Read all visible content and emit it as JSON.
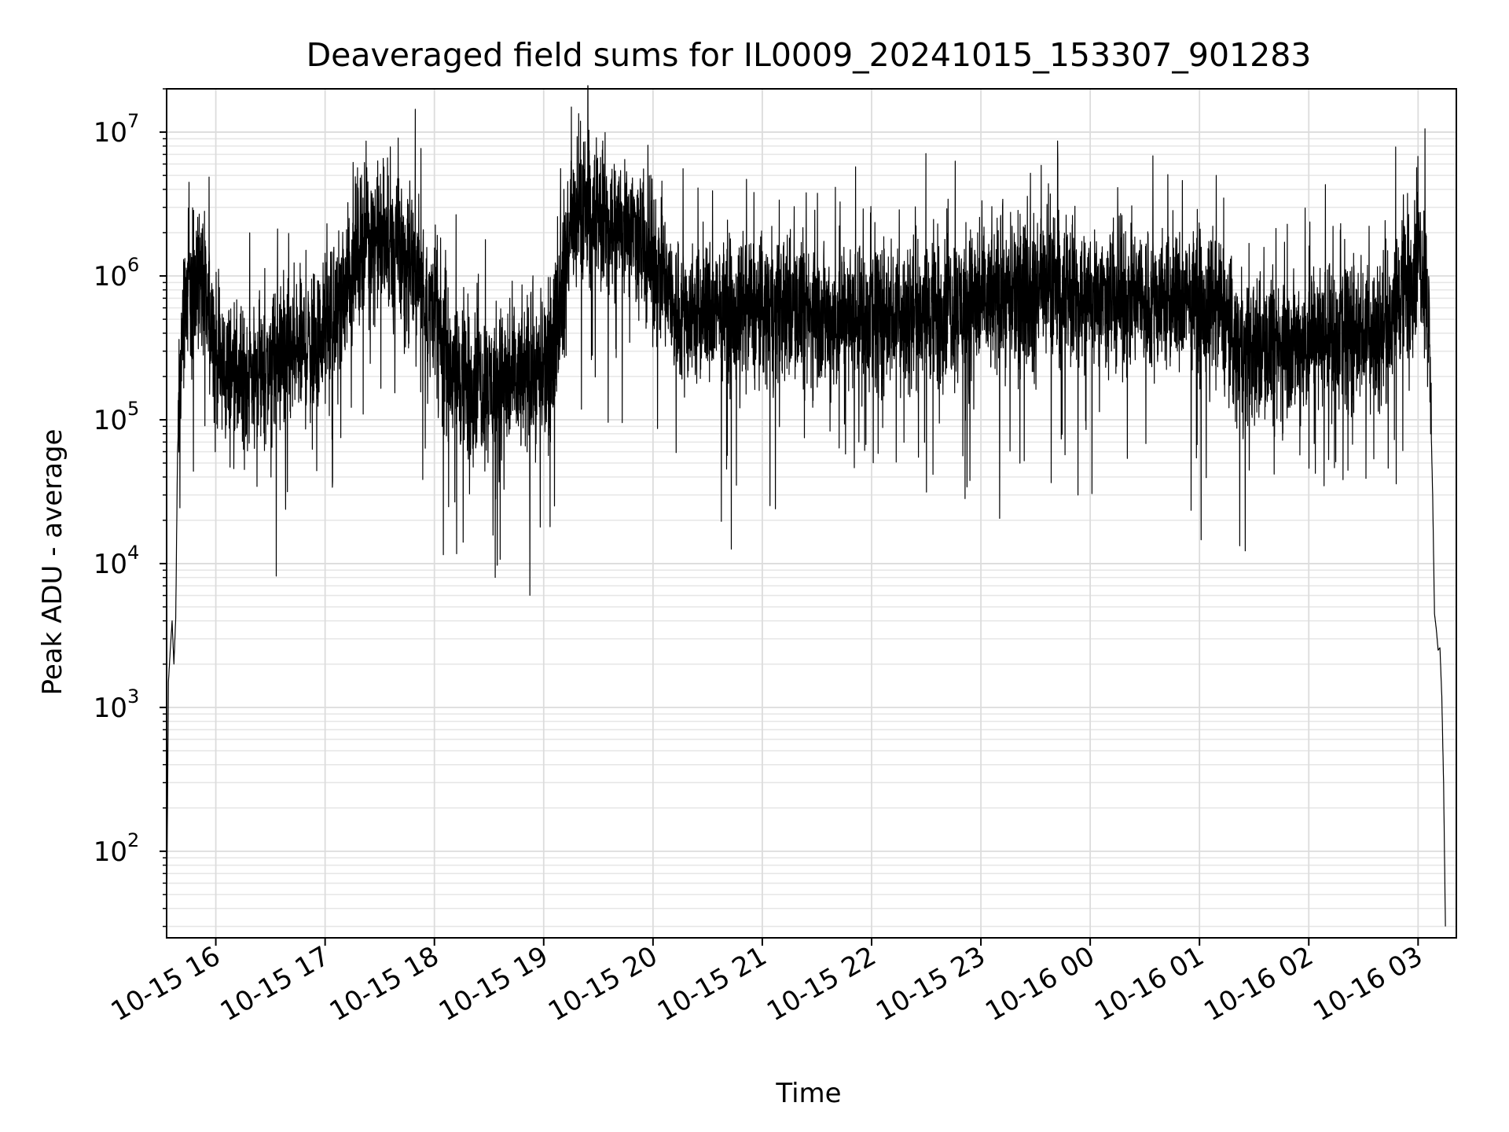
{
  "chart_data": {
    "type": "line",
    "title": "Deaveraged field sums for IL0009_20241015_153307_901283",
    "xlabel": "Time",
    "ylabel": "Peak ADU - average",
    "yscale": "log",
    "ylim": [
      25,
      20000000
    ],
    "xlim": [
      "2024-10-15T15:33:00",
      "2024-10-16T03:21:00"
    ],
    "grid": true,
    "line_color": "#000000",
    "x_ticks": [
      {
        "t": "2024-10-15T16:00",
        "label": "10-15 16"
      },
      {
        "t": "2024-10-15T17:00",
        "label": "10-15 17"
      },
      {
        "t": "2024-10-15T18:00",
        "label": "10-15 18"
      },
      {
        "t": "2024-10-15T19:00",
        "label": "10-15 19"
      },
      {
        "t": "2024-10-15T20:00",
        "label": "10-15 20"
      },
      {
        "t": "2024-10-15T21:00",
        "label": "10-15 21"
      },
      {
        "t": "2024-10-15T22:00",
        "label": "10-15 22"
      },
      {
        "t": "2024-10-15T23:00",
        "label": "10-15 23"
      },
      {
        "t": "2024-10-16T00:00",
        "label": "10-16 00"
      },
      {
        "t": "2024-10-16T01:00",
        "label": "10-16 01"
      },
      {
        "t": "2024-10-16T02:00",
        "label": "10-16 02"
      },
      {
        "t": "2024-10-16T03:00",
        "label": "10-16 03"
      }
    ],
    "y_ticks": [
      {
        "value": 100,
        "base": "10",
        "exp": "2"
      },
      {
        "value": 1000,
        "base": "10",
        "exp": "3"
      },
      {
        "value": 10000,
        "base": "10",
        "exp": "4"
      },
      {
        "value": 100000,
        "base": "10",
        "exp": "5"
      },
      {
        "value": 1000000,
        "base": "10",
        "exp": "6"
      },
      {
        "value": 10000000,
        "base": "10",
        "exp": "7"
      }
    ],
    "series": [
      {
        "values": [
          [
            "2024-10-15T15:33",
            30
          ],
          [
            "2024-10-15T15:34",
            1500
          ],
          [
            "2024-10-15T15:35",
            2500
          ],
          [
            "2024-10-15T15:36",
            4000
          ],
          [
            "2024-10-15T15:37",
            2000
          ],
          [
            "2024-10-15T15:38",
            4200
          ],
          [
            "2024-10-15T15:39",
            60000
          ],
          [
            "2024-10-15T15:41",
            300000
          ],
          [
            "2024-10-15T15:43",
            600000
          ],
          [
            "2024-10-15T15:46",
            900000
          ],
          [
            "2024-10-15T15:49",
            1100000
          ],
          [
            "2024-10-15T15:52",
            900000
          ],
          [
            "2024-10-15T15:55",
            600000
          ],
          [
            "2024-10-15T15:58",
            400000
          ],
          [
            "2024-10-15T16:02",
            250000
          ],
          [
            "2024-10-15T16:06",
            200000
          ],
          [
            "2024-10-15T16:10",
            220000
          ],
          [
            "2024-10-15T16:15",
            200000
          ],
          [
            "2024-10-15T16:20",
            210000
          ],
          [
            "2024-10-15T16:25",
            230000
          ],
          [
            "2024-10-15T16:30",
            220000
          ],
          [
            "2024-10-15T16:35",
            240000
          ],
          [
            "2024-10-15T16:40",
            260000
          ],
          [
            "2024-10-15T16:45",
            300000
          ],
          [
            "2024-10-15T16:50",
            320000
          ],
          [
            "2024-10-15T16:55",
            350000
          ],
          [
            "2024-10-15T17:00",
            420000
          ],
          [
            "2024-10-15T17:05",
            500000
          ],
          [
            "2024-10-15T17:10",
            800000
          ],
          [
            "2024-10-15T17:15",
            1200000
          ],
          [
            "2024-10-15T17:20",
            1800000
          ],
          [
            "2024-10-15T17:25",
            2000000
          ],
          [
            "2024-10-15T17:30",
            1800000
          ],
          [
            "2024-10-15T17:35",
            1500000
          ],
          [
            "2024-10-15T17:40",
            1400000
          ],
          [
            "2024-10-15T17:45",
            1200000
          ],
          [
            "2024-10-15T17:50",
            1100000
          ],
          [
            "2024-10-15T17:55",
            800000
          ],
          [
            "2024-10-15T18:00",
            600000
          ],
          [
            "2024-10-15T18:05",
            300000
          ],
          [
            "2024-10-15T18:10",
            230000
          ],
          [
            "2024-10-15T18:15",
            200000
          ],
          [
            "2024-10-15T18:20",
            190000
          ],
          [
            "2024-10-15T18:25",
            180000
          ],
          [
            "2024-10-15T18:30",
            170000
          ],
          [
            "2024-10-15T18:35",
            180000
          ],
          [
            "2024-10-15T18:40",
            175000
          ],
          [
            "2024-10-15T18:45",
            185000
          ],
          [
            "2024-10-15T18:50",
            200000
          ],
          [
            "2024-10-15T18:55",
            210000
          ],
          [
            "2024-10-15T19:00",
            220000
          ],
          [
            "2024-10-15T19:05",
            300000
          ],
          [
            "2024-10-15T19:10",
            1000000
          ],
          [
            "2024-10-15T19:15",
            2000000
          ],
          [
            "2024-10-15T19:20",
            2500000
          ],
          [
            "2024-10-15T19:25",
            2800000
          ],
          [
            "2024-10-15T19:30",
            2600000
          ],
          [
            "2024-10-15T19:35",
            2400000
          ],
          [
            "2024-10-15T19:40",
            2300000
          ],
          [
            "2024-10-15T19:45",
            2200000
          ],
          [
            "2024-10-15T19:50",
            2100000
          ],
          [
            "2024-10-15T19:55",
            1500000
          ],
          [
            "2024-10-15T20:00",
            1200000
          ],
          [
            "2024-10-15T20:05",
            1000000
          ],
          [
            "2024-10-15T20:10",
            600000
          ],
          [
            "2024-10-15T20:20",
            500000
          ],
          [
            "2024-10-15T20:30",
            550000
          ],
          [
            "2024-10-15T20:40",
            520000
          ],
          [
            "2024-10-15T20:50",
            560000
          ],
          [
            "2024-10-15T21:00",
            600000
          ],
          [
            "2024-10-15T21:10",
            580000
          ],
          [
            "2024-10-15T21:20",
            550000
          ],
          [
            "2024-10-15T21:30",
            520000
          ],
          [
            "2024-10-15T21:40",
            480000
          ],
          [
            "2024-10-15T21:50",
            500000
          ],
          [
            "2024-10-15T22:00",
            520000
          ],
          [
            "2024-10-15T22:10",
            540000
          ],
          [
            "2024-10-15T22:20",
            560000
          ],
          [
            "2024-10-15T22:30",
            580000
          ],
          [
            "2024-10-15T22:40",
            600000
          ],
          [
            "2024-10-15T22:50",
            620000
          ],
          [
            "2024-10-15T23:00",
            650000
          ],
          [
            "2024-10-15T23:10",
            700000
          ],
          [
            "2024-10-15T23:20",
            750000
          ],
          [
            "2024-10-15T23:30",
            800000
          ],
          [
            "2024-10-15T23:40",
            780000
          ],
          [
            "2024-10-15T23:50",
            760000
          ],
          [
            "2024-10-16T00:00",
            720000
          ],
          [
            "2024-10-16T00:10",
            700000
          ],
          [
            "2024-10-16T00:20",
            680000
          ],
          [
            "2024-10-16T00:30",
            660000
          ],
          [
            "2024-10-16T00:40",
            650000
          ],
          [
            "2024-10-16T00:50",
            640000
          ],
          [
            "2024-10-16T01:00",
            620000
          ],
          [
            "2024-10-16T01:10",
            600000
          ],
          [
            "2024-10-16T01:15",
            500000
          ],
          [
            "2024-10-16T01:20",
            320000
          ],
          [
            "2024-10-16T01:30",
            280000
          ],
          [
            "2024-10-16T01:40",
            300000
          ],
          [
            "2024-10-16T01:50",
            320000
          ],
          [
            "2024-10-16T02:00",
            350000
          ],
          [
            "2024-10-16T02:10",
            380000
          ],
          [
            "2024-10-16T02:20",
            400000
          ],
          [
            "2024-10-16T02:30",
            420000
          ],
          [
            "2024-10-16T02:40",
            430000
          ],
          [
            "2024-10-16T02:45",
            500000
          ],
          [
            "2024-10-16T02:50",
            800000
          ],
          [
            "2024-10-16T02:55",
            1000000
          ],
          [
            "2024-10-16T03:00",
            1200000
          ],
          [
            "2024-10-16T03:02",
            1300000
          ],
          [
            "2024-10-16T03:04",
            1000000
          ],
          [
            "2024-10-16T03:06",
            400000
          ],
          [
            "2024-10-16T03:08",
            30000
          ],
          [
            "2024-10-16T03:09",
            4500
          ],
          [
            "2024-10-16T03:10",
            3500
          ],
          [
            "2024-10-16T03:11",
            2500
          ],
          [
            "2024-10-16T03:12",
            2600
          ],
          [
            "2024-10-16T03:13",
            1200
          ],
          [
            "2024-10-16T03:14",
            300
          ],
          [
            "2024-10-16T03:15",
            30
          ]
        ],
        "noise_amplitude_log10": 0.5
      }
    ]
  }
}
